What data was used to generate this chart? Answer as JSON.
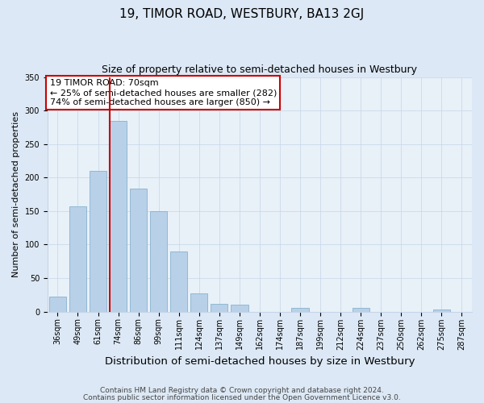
{
  "title": "19, TIMOR ROAD, WESTBURY, BA13 2GJ",
  "subtitle": "Size of property relative to semi-detached houses in Westbury",
  "xlabel": "Distribution of semi-detached houses by size in Westbury",
  "ylabel": "Number of semi-detached properties",
  "footnote1": "Contains HM Land Registry data © Crown copyright and database right 2024.",
  "footnote2": "Contains public sector information licensed under the Open Government Licence v3.0.",
  "annotation_title": "19 TIMOR ROAD: 70sqm",
  "annotation_line1": "← 25% of semi-detached houses are smaller (282)",
  "annotation_line2": "74% of semi-detached houses are larger (850) →",
  "bar_labels": [
    "36sqm",
    "49sqm",
    "61sqm",
    "74sqm",
    "86sqm",
    "99sqm",
    "111sqm",
    "124sqm",
    "137sqm",
    "149sqm",
    "162sqm",
    "174sqm",
    "187sqm",
    "199sqm",
    "212sqm",
    "224sqm",
    "237sqm",
    "250sqm",
    "262sqm",
    "275sqm",
    "287sqm"
  ],
  "bar_values": [
    22,
    157,
    210,
    285,
    183,
    150,
    90,
    27,
    11,
    10,
    0,
    0,
    5,
    0,
    0,
    5,
    0,
    0,
    0,
    3,
    0
  ],
  "bar_color": "#b8d0e8",
  "bar_edge_color": "#7aaac8",
  "redline_x": 3.0,
  "ylim": [
    0,
    350
  ],
  "yticks": [
    0,
    50,
    100,
    150,
    200,
    250,
    300,
    350
  ],
  "bg_color": "#dce8f5",
  "plot_bg_color": "#e8f0f8",
  "grid_color": "#c5d5e8",
  "redline_color": "#cc0000",
  "box_edge_color": "#cc0000",
  "title_fontsize": 11,
  "subtitle_fontsize": 9,
  "xlabel_fontsize": 9.5,
  "ylabel_fontsize": 8,
  "tick_fontsize": 7,
  "annotation_fontsize": 8,
  "footnote_fontsize": 6.5
}
